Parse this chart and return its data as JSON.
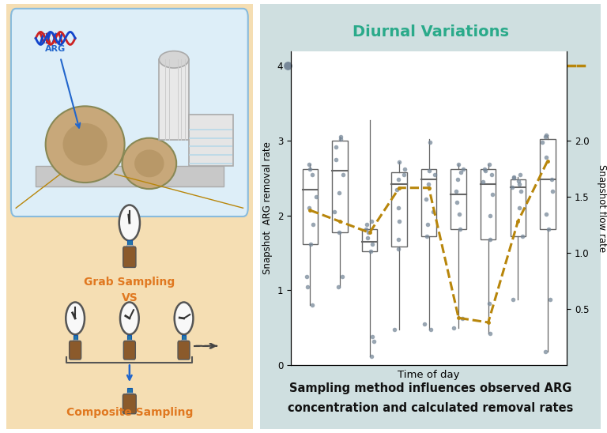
{
  "title": "Diurnal Variations",
  "title_color": "#2aaa8a",
  "xlabel": "Time of day",
  "ylabel_left": "Snapshot  ARG removal rate",
  "ylabel_right": "Snapshot flow rate",
  "ylim_left": [
    0,
    4.2
  ],
  "ylim_right": [
    0,
    2.8
  ],
  "yticks_left": [
    0,
    1,
    2,
    3,
    4
  ],
  "yticks_right": [
    0.5,
    1.0,
    1.5,
    2.0
  ],
  "panel_bg_left_top": "#ddeef8",
  "panel_bg_left_bottom": "#f5deb3",
  "panel_bg_right": "#cfdfe0",
  "bottom_text_line1": "Sampling method influences observed ARG",
  "bottom_text_line2": "concentration and calculated removal rates",
  "box_data": [
    {
      "q1": 1.62,
      "median": 2.35,
      "q3": 2.62,
      "whisker_low": 0.8,
      "whisker_high": 2.68,
      "dots": [
        0.8,
        1.05,
        1.18,
        1.62,
        1.88,
        2.1,
        2.25,
        2.55,
        2.62,
        2.68
      ]
    },
    {
      "q1": 1.78,
      "median": 2.6,
      "q3": 3.0,
      "whisker_low": 1.05,
      "whisker_high": 3.05,
      "dots": [
        1.05,
        1.18,
        1.78,
        2.05,
        2.3,
        2.55,
        2.75,
        2.92,
        3.02,
        3.05
      ]
    },
    {
      "q1": 1.52,
      "median": 1.65,
      "q3": 1.82,
      "whisker_low": 0.12,
      "whisker_high": 3.28,
      "dots": [
        0.12,
        0.32,
        0.38,
        1.52,
        1.62,
        1.7,
        1.78,
        1.82,
        1.88,
        1.92
      ]
    },
    {
      "q1": 1.58,
      "median": 2.42,
      "q3": 2.58,
      "whisker_low": 0.48,
      "whisker_high": 2.72,
      "dots": [
        0.48,
        1.55,
        1.68,
        1.92,
        2.1,
        2.35,
        2.48,
        2.55,
        2.62,
        2.72
      ]
    },
    {
      "q1": 1.72,
      "median": 2.48,
      "q3": 2.62,
      "whisker_low": 0.48,
      "whisker_high": 3.02,
      "dots": [
        0.48,
        0.55,
        1.72,
        1.88,
        2.05,
        2.22,
        2.42,
        2.55,
        2.6,
        2.98
      ]
    },
    {
      "q1": 1.82,
      "median": 2.28,
      "q3": 2.62,
      "whisker_low": 0.5,
      "whisker_high": 2.68,
      "dots": [
        0.5,
        0.62,
        1.82,
        2.02,
        2.18,
        2.32,
        2.48,
        2.58,
        2.62,
        2.68
      ]
    },
    {
      "q1": 1.68,
      "median": 2.42,
      "q3": 2.62,
      "whisker_low": 0.42,
      "whisker_high": 2.68,
      "dots": [
        0.42,
        0.82,
        1.68,
        2.0,
        2.28,
        2.45,
        2.55,
        2.6,
        2.62,
        2.68
      ]
    },
    {
      "q1": 1.72,
      "median": 2.38,
      "q3": 2.48,
      "whisker_low": 0.88,
      "whisker_high": 2.52,
      "dots": [
        0.88,
        1.72,
        2.1,
        2.32,
        2.38,
        2.42,
        2.46,
        2.5,
        2.52,
        2.55
      ]
    },
    {
      "q1": 1.82,
      "median": 2.48,
      "q3": 3.02,
      "whisker_low": 0.18,
      "whisker_high": 3.08,
      "dots": [
        0.18,
        0.88,
        1.82,
        2.02,
        2.32,
        2.48,
        2.78,
        2.98,
        3.05,
        3.08
      ]
    }
  ],
  "flow_line_x": [
    1,
    2,
    3,
    4,
    5,
    6,
    7,
    8,
    9
  ],
  "flow_line_y": [
    1.38,
    1.28,
    1.18,
    1.58,
    1.58,
    0.42,
    0.38,
    1.28,
    1.82
  ],
  "flow_color": "#b8860b",
  "dot_color": "#778899",
  "box_color": "white",
  "box_edge_color": "#666666",
  "grab_text_color": "#e07820",
  "composite_text_color": "#e07820"
}
